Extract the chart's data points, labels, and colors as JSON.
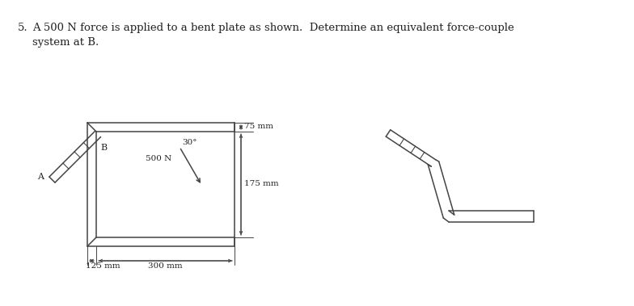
{
  "bg_color": "#ffffff",
  "text_color": "#222222",
  "line_color": "#444444",
  "fig_width": 7.84,
  "fig_height": 3.79,
  "dpi": 100,
  "problem_number": "5.",
  "problem_text_line1": "A 500 N force is applied to a bent plate as shown.  Determine an equivalent force-couple",
  "problem_text_line2": "system at B.",
  "label_A": "A",
  "label_B": "B",
  "label_force": "500 N",
  "label_angle": "30°",
  "dim_75": "75 mm",
  "dim_175": "175 mm",
  "dim_300": "300 mm",
  "dim_125": "125 mm"
}
